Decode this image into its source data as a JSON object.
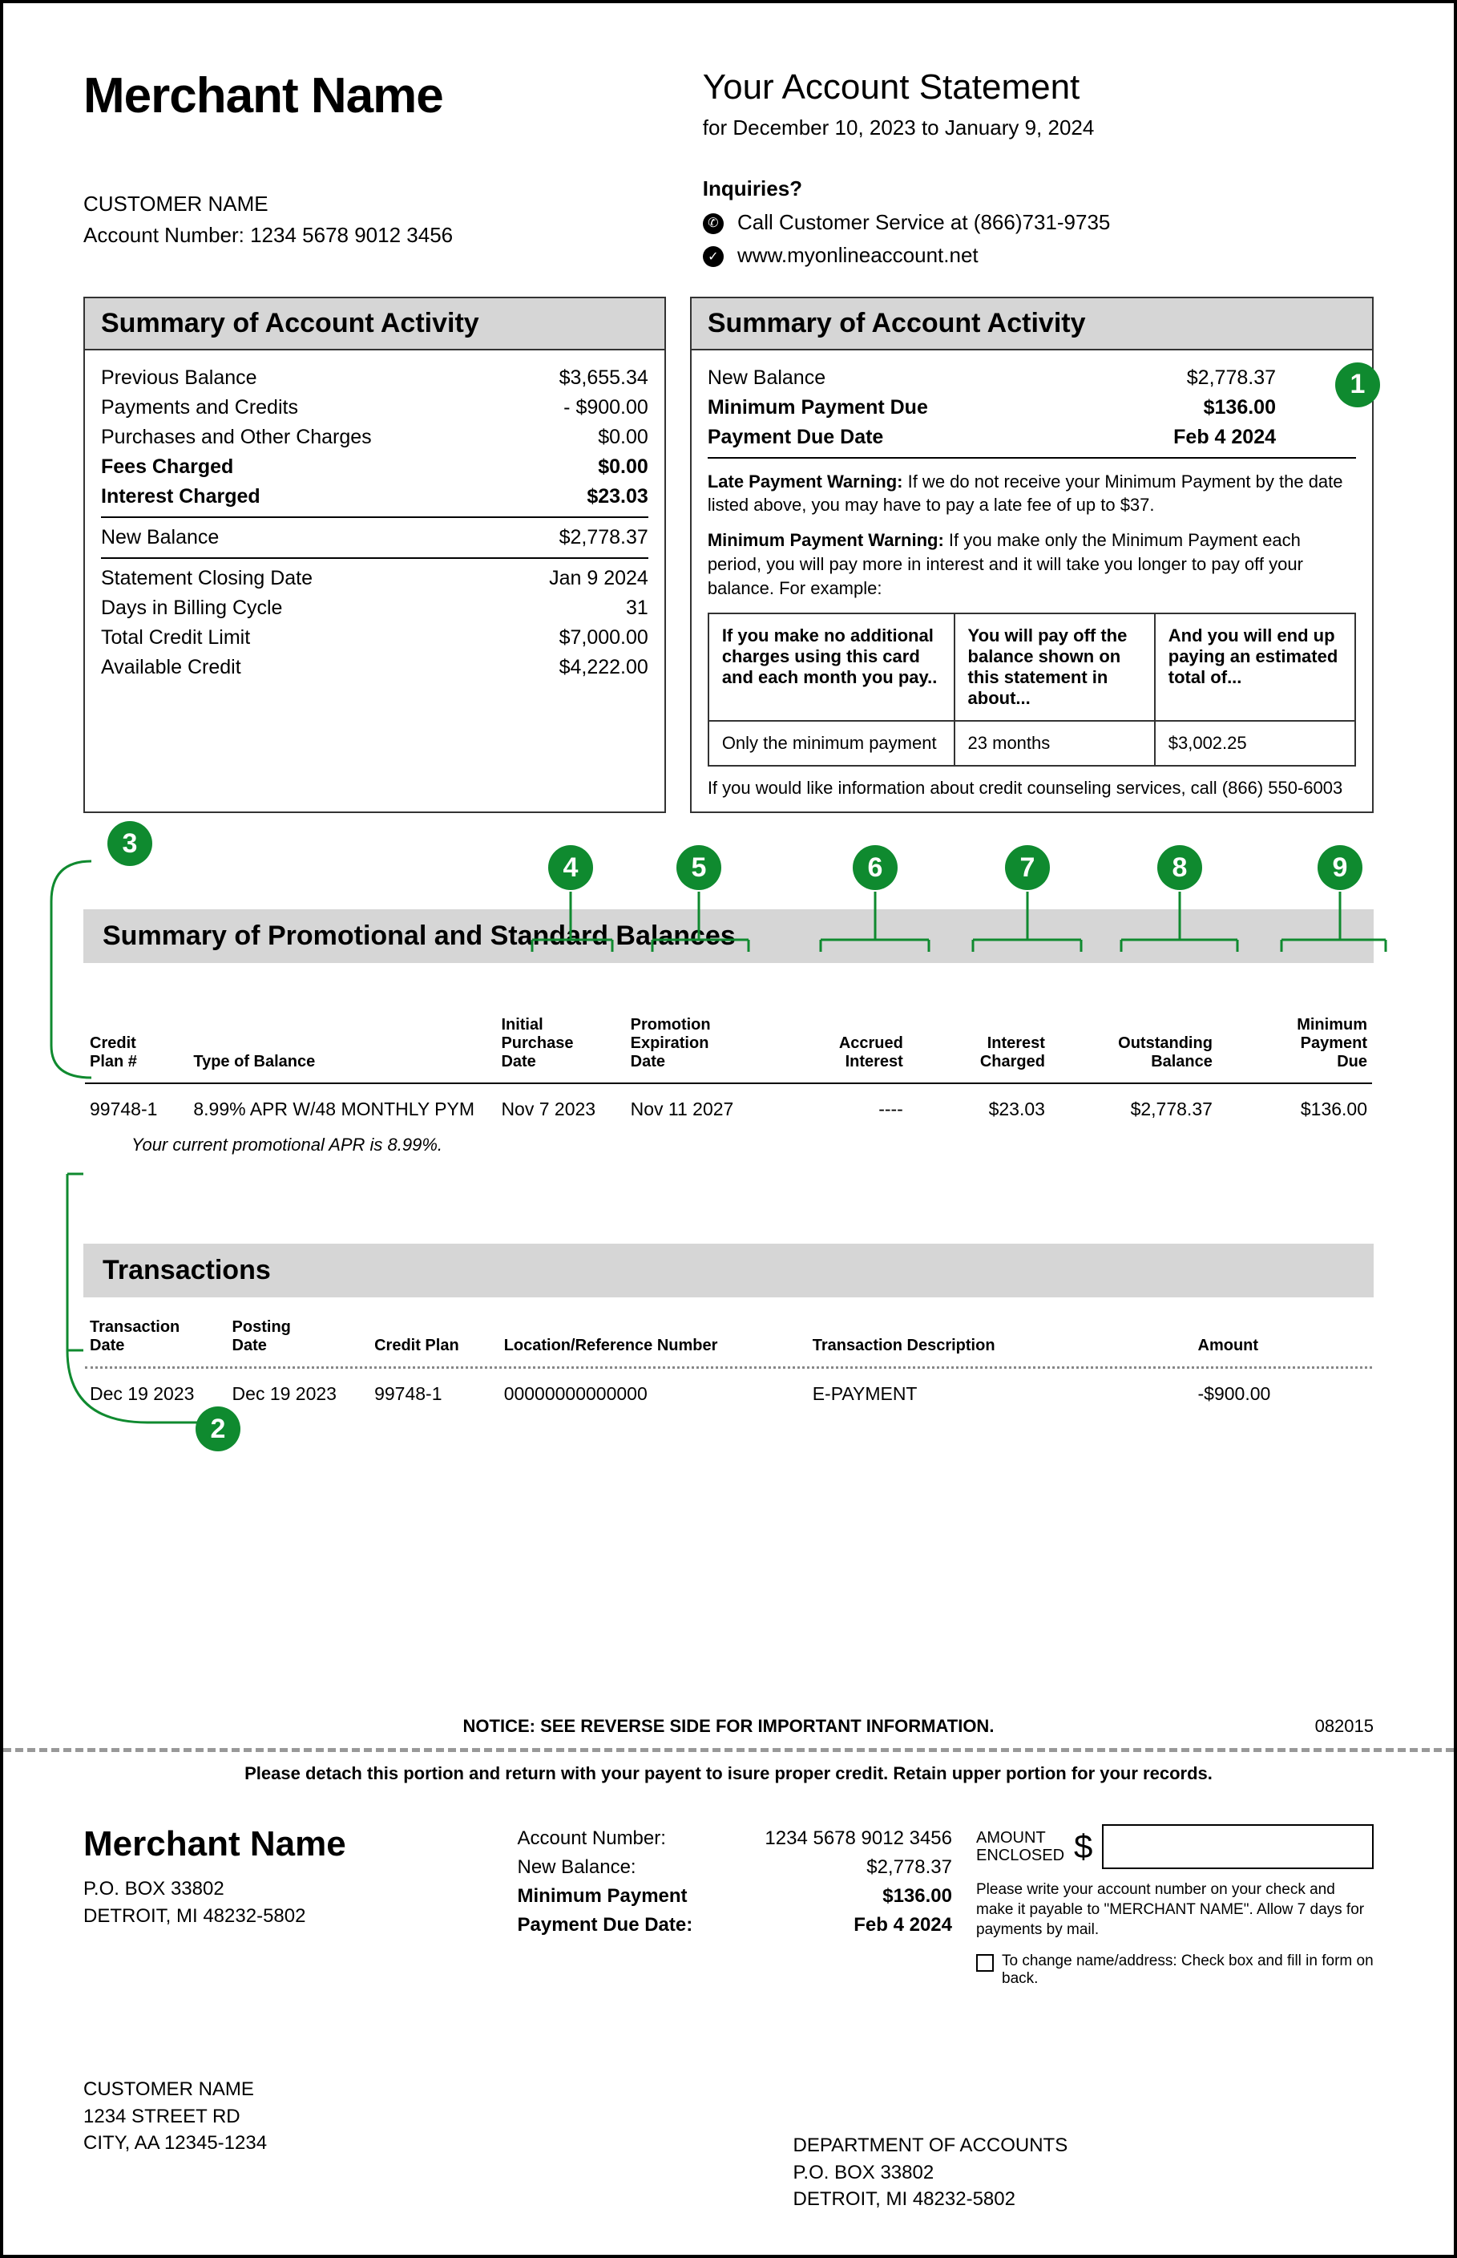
{
  "header": {
    "merchant": "Merchant Name",
    "statement_title": "Your Account Statement",
    "statement_range": "for December 10, 2023 to January 9, 2024",
    "customer_name": "CUSTOMER NAME",
    "account_number_label": "Account Number: 1234 5678 9012 3456",
    "inquiries_title": "Inquiries?",
    "call_line": "Call Customer Service at (866)731-9735",
    "web_line": "www.myonlineaccount.net"
  },
  "summary_left": {
    "title": "Summary of Account Activity",
    "rows": [
      {
        "label": "Previous Balance",
        "value": "$3,655.34",
        "bold": false
      },
      {
        "label": "Payments and Credits",
        "value": "- $900.00",
        "bold": false
      },
      {
        "label": "Purchases and Other Charges",
        "value": "$0.00",
        "bold": false
      },
      {
        "label": "Fees Charged",
        "value": "$0.00",
        "bold": true
      },
      {
        "label": "Interest Charged",
        "value": "$23.03",
        "bold": true
      }
    ],
    "new_balance": {
      "label": "New Balance",
      "value": "$2,778.37"
    },
    "footer_rows": [
      {
        "label": "Statement Closing Date",
        "value": "Jan 9 2024"
      },
      {
        "label": "Days in Billing Cycle",
        "value": "31"
      },
      {
        "label": "Total Credit Limit",
        "value": "$7,000.00"
      },
      {
        "label": "Available Credit",
        "value": "$4,222.00"
      }
    ]
  },
  "summary_right": {
    "title": "Summary of Account Activity",
    "rows": [
      {
        "label": "New Balance",
        "value": "$2,778.37",
        "bold": false
      },
      {
        "label": "Minimum Payment Due",
        "value": "$136.00",
        "bold": true
      },
      {
        "label": "Payment Due Date",
        "value": "Feb 4 2024",
        "bold": true
      }
    ],
    "late_warning_label": "Late Payment Warning:",
    "late_warning_text": " If we do not receive your Minimum Payment by the date listed above, you may have to pay a late fee of up to $37.",
    "min_warning_label": "Minimum Payment Warning:",
    "min_warning_text": " If you make only the Minimum Payment each period, you will pay more in interest and it will take you longer to pay off your balance. For example:",
    "warn_table": {
      "h1": "If you make no additional charges using this card and each month you pay..",
      "h2": "You will pay off the balance shown on this statement in about...",
      "h3": "And you will end up paying an estimated total of...",
      "r1c1": "Only the minimum payment",
      "r1c2": "23 months",
      "r1c3": "$3,002.25"
    },
    "credit_counsel": "If you would like information about credit counseling services, call (866) 550-6003"
  },
  "badges": {
    "b1": "1",
    "b2": "2",
    "b3": "3",
    "b4": "4",
    "b5": "5",
    "b6": "6",
    "b7": "7",
    "b8": "8",
    "b9": "9"
  },
  "promo": {
    "title": "Summary of Promotional and Standard Balances",
    "headers": {
      "plan": "Credit\nPlan #",
      "type": "Type of Balance",
      "init": "Initial\nPurchase\nDate",
      "exp": "Promotion\nExpiration\nDate",
      "accrued": "Accrued\nInterest",
      "charged": "Interest\nCharged",
      "outstanding": "Outstanding\nBalance",
      "minpay": "Minimum\nPayment\nDue"
    },
    "row": {
      "plan": "99748-1",
      "type": "8.99% APR W/48 MONTHLY PYM",
      "init": "Nov 7 2023",
      "exp": "Nov 11 2027",
      "accrued": "----",
      "charged": "$23.03",
      "outstanding": "$2,778.37",
      "minpay": "$136.00"
    },
    "note": "Your current promotional APR is 8.99%."
  },
  "transactions": {
    "title": "Transactions",
    "headers": {
      "tdate": "Transaction\nDate",
      "pdate": "Posting\nDate",
      "plan": "Credit Plan",
      "loc": "Location/Reference Number",
      "desc": "Transaction Description",
      "amt": "Amount"
    },
    "row": {
      "tdate": "Dec 19 2023",
      "pdate": "Dec 19 2023",
      "plan": "99748-1",
      "loc": "00000000000000",
      "desc": "E-PAYMENT",
      "amt": "-$900.00"
    }
  },
  "notice": {
    "text": "NOTICE: SEE REVERSE SIDE FOR IMPORTANT INFORMATION.",
    "code": "082015",
    "detach": "Please detach this portion and return with your payent to isure proper credit. Retain upper portion for your records."
  },
  "stub": {
    "merchant": "Merchant Name",
    "addr1": "P.O. BOX 33802",
    "addr2": "DETROIT, MI 48232-5802",
    "rows": [
      {
        "label": "Account Number:",
        "value": "1234 5678 9012 3456",
        "bold": false
      },
      {
        "label": "New Balance:",
        "value": "$2,778.37",
        "bold": false
      },
      {
        "label": "Minimum Payment",
        "value": "$136.00",
        "bold": true
      },
      {
        "label": "Payment Due Date:",
        "value": "Feb 4 2024",
        "bold": true
      }
    ],
    "amt_enc_label": "AMOUNT\nENCLOSED",
    "dollar": "$",
    "note": "Please write your account number on your check and make it payable to \"MERCHANT NAME\". Allow 7 days for payments by mail.",
    "checkbox_text": "To change name/address: Check box and fill in form on back."
  },
  "mail": {
    "cust_name": "CUSTOMER NAME",
    "cust_addr1": "1234 STREET RD",
    "cust_addr2": "CITY, AA 12345-1234",
    "dept1": "DEPARTMENT OF ACCOUNTS",
    "dept2": "P.O. BOX 33802",
    "dept3": "DETROIT, MI 48232-5802"
  },
  "colors": {
    "badge_green": "#0f8a2f",
    "header_gray": "#d6d6d6"
  }
}
